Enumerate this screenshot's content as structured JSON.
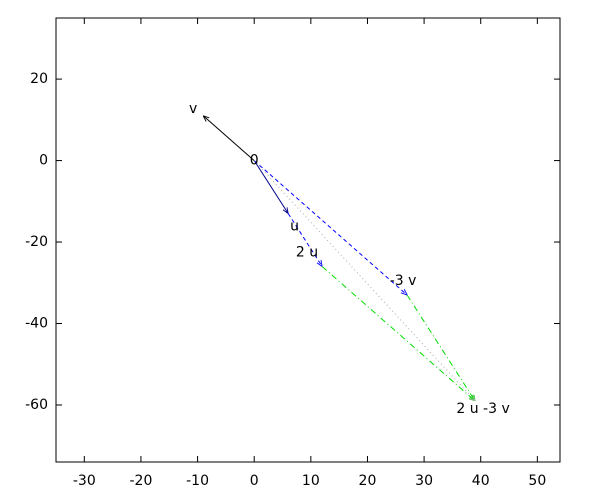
{
  "chart_data": {
    "type": "vector",
    "xlim": [
      -35,
      54
    ],
    "ylim": [
      -74,
      35
    ],
    "xticks": [
      -30,
      -20,
      -10,
      0,
      10,
      20,
      30,
      40,
      50
    ],
    "yticks": [
      -60,
      -40,
      -20,
      0,
      20
    ],
    "segments": [
      {
        "x": [
          0,
          -9
        ],
        "y": [
          0,
          11
        ],
        "color": "#000000",
        "style": "solid"
      },
      {
        "x": [
          0,
          6
        ],
        "y": [
          0,
          -13
        ],
        "color": "#00008b",
        "style": "solid"
      },
      {
        "x": [
          6,
          12
        ],
        "y": [
          -13,
          -26
        ],
        "color": "#0000ff",
        "style": "dashed"
      },
      {
        "x": [
          0,
          27
        ],
        "y": [
          0,
          -33
        ],
        "color": "#0000ff",
        "style": "dashed"
      },
      {
        "x": [
          12,
          39
        ],
        "y": [
          -26,
          -59
        ],
        "color": "#00dd00",
        "style": "dashdot"
      },
      {
        "x": [
          27,
          39
        ],
        "y": [
          -33,
          -59
        ],
        "color": "#00dd00",
        "style": "dashdot"
      },
      {
        "x": [
          0,
          39
        ],
        "y": [
          0,
          -59
        ],
        "color": "#aaaaaa",
        "style": "dotted"
      }
    ],
    "labels": [
      {
        "text": "0",
        "x": 0,
        "y": 0
      },
      {
        "text": "v",
        "x": -9,
        "y": 11
      },
      {
        "text": "u",
        "x": 6,
        "y": -13
      },
      {
        "text": "2 u",
        "x": 12,
        "y": -26
      },
      {
        "text": "-3 v",
        "x": 27,
        "y": -33
      },
      {
        "text": "2 u -3 v",
        "x": 39,
        "y": -59
      }
    ]
  }
}
